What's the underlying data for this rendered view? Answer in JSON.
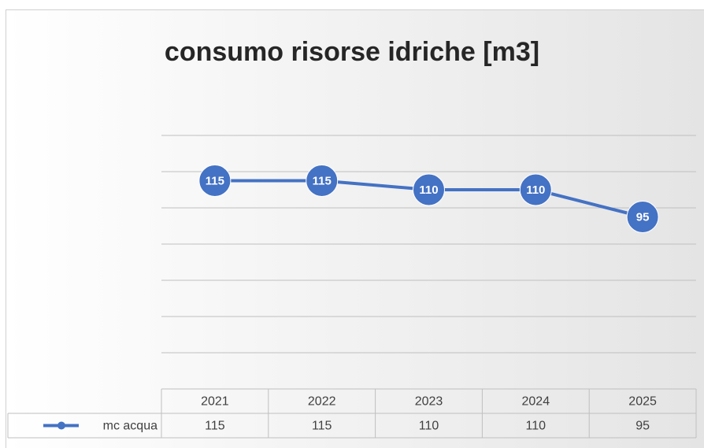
{
  "chart_data": {
    "type": "line",
    "title": "consumo risorse idriche [m3]",
    "categories": [
      "2021",
      "2022",
      "2023",
      "2024",
      "2025"
    ],
    "series": [
      {
        "name": "mc acqua",
        "color": "#4472c4",
        "values": [
          115,
          115,
          110,
          110,
          95
        ]
      }
    ],
    "ylim": [
      0,
      140
    ],
    "yticks": [
      0,
      20,
      40,
      60,
      80,
      100,
      120,
      140
    ],
    "grid": true,
    "data_table": true
  }
}
